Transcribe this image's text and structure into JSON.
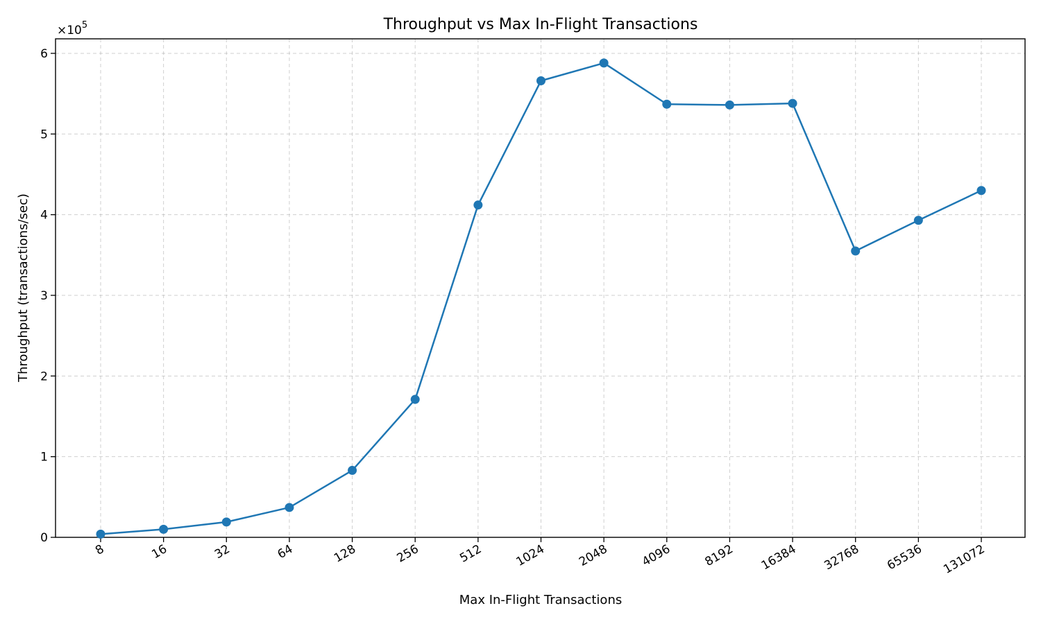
{
  "chart_data": {
    "type": "line",
    "title": "Throughput vs Max In-Flight Transactions",
    "xlabel": "Max In-Flight Transactions",
    "ylabel": "Throughput (transactions/sec)",
    "y_multiplier_label": "×10",
    "y_multiplier_exponent": "5",
    "categories": [
      "8",
      "16",
      "32",
      "64",
      "128",
      "256",
      "512",
      "1024",
      "2048",
      "4096",
      "8192",
      "16384",
      "32768",
      "65536",
      "131072"
    ],
    "y_ticks": [
      0,
      1,
      2,
      3,
      4,
      5,
      6
    ],
    "ylim": [
      0,
      6.18
    ],
    "grid": true,
    "series": [
      {
        "color": "#1f77b4",
        "values": [
          0.04,
          0.1,
          0.19,
          0.37,
          0.83,
          1.71,
          4.12,
          5.66,
          5.88,
          5.37,
          5.36,
          5.38,
          3.55,
          3.93,
          4.3
        ]
      }
    ]
  }
}
